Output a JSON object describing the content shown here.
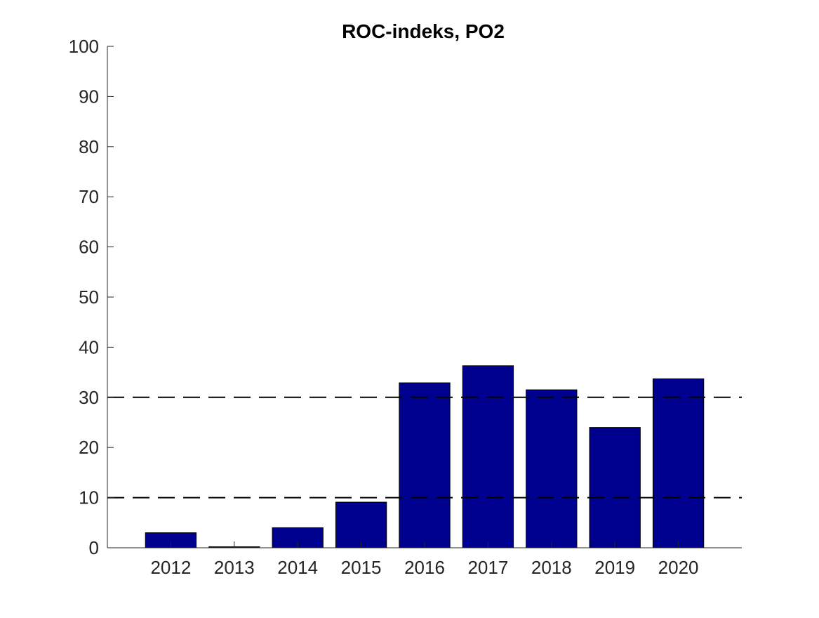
{
  "chart_data": {
    "type": "bar",
    "title": "ROC-indeks, PO2",
    "xlabel": "",
    "ylabel": "",
    "categories": [
      "2012",
      "2013",
      "2014",
      "2015",
      "2016",
      "2017",
      "2018",
      "2019",
      "2020"
    ],
    "values": [
      3.0,
      0.2,
      4.0,
      9.1,
      32.9,
      36.3,
      31.5,
      24.0,
      33.7
    ],
    "ylim": [
      0,
      100
    ],
    "yticks": [
      0,
      10,
      20,
      30,
      40,
      50,
      60,
      70,
      80,
      90,
      100
    ],
    "reference_lines": [
      10,
      30
    ],
    "bar_color": "#00008f",
    "grid": false
  }
}
